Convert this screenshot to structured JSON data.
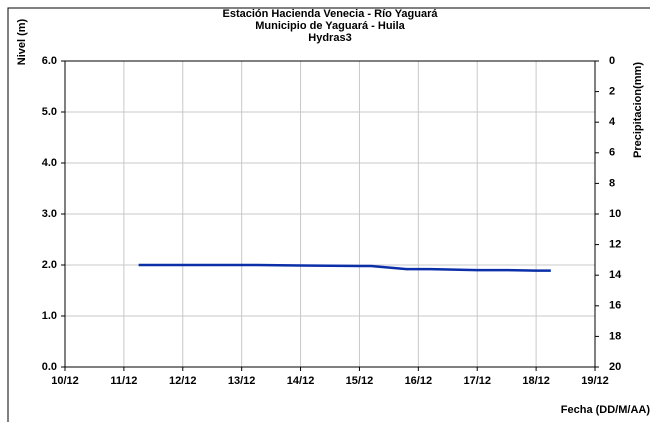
{
  "chart_data": {
    "type": "line",
    "title": [
      "Estación Hacienda Venecia - Río  Yaguará",
      "Municipio de Yaguará - Huila",
      "Hydras3"
    ],
    "ylabel": "Nivel (m)",
    "y2label": "Precipitacion(mm)",
    "xlabel": "Fecha (DD/M/AA)",
    "xlim": [
      10,
      19
    ],
    "xticks": [
      {
        "value": 10,
        "label": "10/12"
      },
      {
        "value": 11,
        "label": "11/12"
      },
      {
        "value": 12,
        "label": "12/12"
      },
      {
        "value": 13,
        "label": "13/12"
      },
      {
        "value": 14,
        "label": "14/12"
      },
      {
        "value": 15,
        "label": "15/12"
      },
      {
        "value": 16,
        "label": "16/12"
      },
      {
        "value": 17,
        "label": "17/12"
      },
      {
        "value": 18,
        "label": "18/12"
      },
      {
        "value": 19,
        "label": "19/12"
      }
    ],
    "ylim": [
      0,
      6
    ],
    "yticks": [
      {
        "value": 0,
        "label": "0.0"
      },
      {
        "value": 1,
        "label": "1.0"
      },
      {
        "value": 2,
        "label": "2.0"
      },
      {
        "value": 3,
        "label": "3.0"
      },
      {
        "value": 4,
        "label": "4.0"
      },
      {
        "value": 5,
        "label": "5.0"
      },
      {
        "value": 6,
        "label": "6.0"
      }
    ],
    "y2lim": [
      0,
      20
    ],
    "y2_inverted": true,
    "y2ticks": [
      0,
      2,
      4,
      6,
      8,
      10,
      12,
      14,
      16,
      18,
      20
    ],
    "grid": true,
    "series": [
      {
        "name": "Nivel",
        "color": "#0a2fa8",
        "x": [
          11.25,
          12,
          13,
          13.25,
          14,
          15,
          15.2,
          15.8,
          16.2,
          17,
          17.5,
          18,
          18.25
        ],
        "values": [
          2.0,
          2.0,
          2.0,
          2.0,
          1.99,
          1.98,
          1.98,
          1.92,
          1.92,
          1.9,
          1.9,
          1.89,
          1.89
        ]
      }
    ]
  }
}
